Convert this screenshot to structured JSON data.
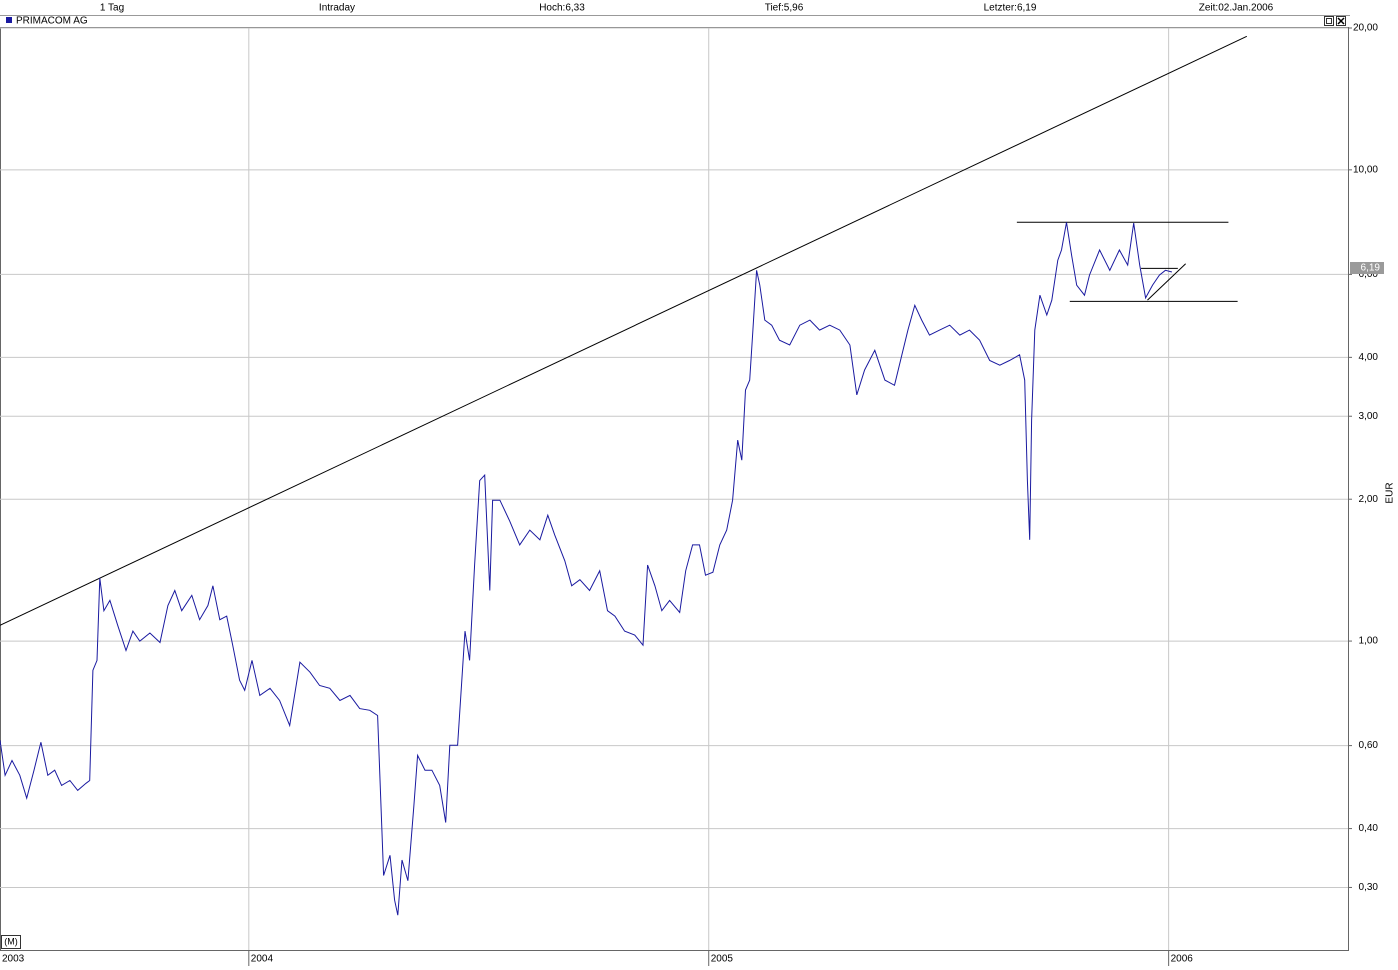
{
  "header": {
    "items": [
      "1 Tag",
      "Intraday",
      "Hoch:6,33",
      "Tief:5,96",
      "Letzter:6,19",
      "Zeit:02.Jan.2006"
    ]
  },
  "chart_data": {
    "type": "line",
    "title": "PRIMACOM AG",
    "ylabel": "EUR",
    "log_scale": true,
    "grid": true,
    "period_label": "(M)",
    "x_start_label": "2003",
    "color": "#1a1aa0",
    "xlim": [
      2003.459,
      2006.39
    ],
    "ylim": [
      0.221,
      20
    ],
    "xticks": [
      2004,
      2005,
      2006
    ],
    "yticks": [
      {
        "value": 0.3,
        "label": "0,30"
      },
      {
        "value": 0.4,
        "label": "0,40"
      },
      {
        "value": 0.6,
        "label": "0,60"
      },
      {
        "value": 1,
        "label": "1,00"
      },
      {
        "value": 2,
        "label": "2,00"
      },
      {
        "value": 3,
        "label": "3,00"
      },
      {
        "value": 4,
        "label": "4,00"
      },
      {
        "value": 6,
        "label": "6,00"
      },
      {
        "value": 10,
        "label": "10,00"
      },
      {
        "value": 20,
        "label": "20,00"
      }
    ],
    "last_value": {
      "value": 6.19,
      "label": "6,19"
    },
    "x": [
      2003.459,
      2003.47,
      2003.485,
      2003.502,
      2003.517,
      2003.533,
      2003.548,
      2003.563,
      2003.578,
      2003.593,
      2003.611,
      2003.628,
      2003.646,
      2003.654,
      2003.661,
      2003.67,
      2003.676,
      2003.685,
      2003.698,
      2003.715,
      2003.733,
      2003.748,
      2003.763,
      2003.785,
      2003.807,
      2003.824,
      2003.839,
      2003.854,
      2003.876,
      2003.893,
      2003.911,
      2003.922,
      2003.937,
      2003.952,
      2003.965,
      2003.98,
      2003.991,
      2004.007,
      2004.024,
      2004.046,
      2004.067,
      2004.089,
      2004.111,
      2004.133,
      2004.154,
      2004.176,
      2004.198,
      2004.22,
      2004.241,
      2004.263,
      2004.28,
      2004.293,
      2004.307,
      2004.317,
      2004.324,
      2004.333,
      2004.346,
      2004.359,
      2004.367,
      2004.383,
      2004.398,
      2004.415,
      2004.428,
      2004.437,
      2004.454,
      2004.47,
      2004.48,
      2004.491,
      2004.502,
      2004.513,
      2004.524,
      2004.53,
      2004.546,
      2004.567,
      2004.589,
      2004.611,
      2004.633,
      2004.65,
      2004.665,
      2004.687,
      2004.702,
      2004.72,
      2004.741,
      2004.763,
      2004.78,
      2004.796,
      2004.817,
      2004.839,
      2004.857,
      2004.867,
      2004.883,
      2004.898,
      2004.915,
      2004.937,
      2004.95,
      2004.965,
      2004.98,
      2004.993,
      2005.009,
      2005.024,
      2005.039,
      2005.052,
      2005.063,
      2005.072,
      2005.08,
      2005.089,
      2005.096,
      2005.104,
      2005.111,
      2005.122,
      2005.137,
      2005.154,
      2005.176,
      2005.198,
      2005.22,
      2005.241,
      2005.263,
      2005.285,
      2005.307,
      2005.322,
      2005.339,
      2005.361,
      2005.383,
      2005.404,
      2005.42,
      2005.433,
      2005.448,
      2005.463,
      2005.48,
      2005.502,
      2005.524,
      2005.546,
      2005.567,
      2005.589,
      2005.611,
      2005.633,
      2005.654,
      2005.676,
      2005.687,
      2005.693,
      2005.698,
      2005.702,
      2005.709,
      2005.72,
      2005.735,
      2005.746,
      2005.759,
      2005.767,
      2005.778,
      2005.789,
      2005.8,
      2005.817,
      2005.828,
      2005.85,
      2005.872,
      2005.893,
      2005.911,
      2005.924,
      2005.937,
      2005.95,
      2005.965,
      2005.98,
      2005.993,
      2006.007
    ],
    "values": [
      0.616,
      0.519,
      0.558,
      0.519,
      0.464,
      0.532,
      0.61,
      0.519,
      0.532,
      0.494,
      0.506,
      0.482,
      0.499,
      0.506,
      0.867,
      0.91,
      1.36,
      1.16,
      1.22,
      1.08,
      0.955,
      1.05,
      1.0,
      1.04,
      0.993,
      1.19,
      1.28,
      1.16,
      1.25,
      1.11,
      1.19,
      1.31,
      1.11,
      1.13,
      0.98,
      0.826,
      0.786,
      0.91,
      0.767,
      0.794,
      0.748,
      0.662,
      0.902,
      0.859,
      0.805,
      0.794,
      0.748,
      0.767,
      0.719,
      0.713,
      0.695,
      0.318,
      0.351,
      0.282,
      0.262,
      0.343,
      0.31,
      0.448,
      0.572,
      0.532,
      0.532,
      0.494,
      0.412,
      0.601,
      0.601,
      1.05,
      0.91,
      1.45,
      2.19,
      2.25,
      1.28,
      1.99,
      1.99,
      1.8,
      1.6,
      1.72,
      1.64,
      1.85,
      1.68,
      1.48,
      1.31,
      1.35,
      1.28,
      1.41,
      1.16,
      1.13,
      1.05,
      1.03,
      0.98,
      1.45,
      1.31,
      1.16,
      1.22,
      1.15,
      1.41,
      1.6,
      1.6,
      1.38,
      1.4,
      1.6,
      1.72,
      1.99,
      2.67,
      2.42,
      3.41,
      3.58,
      4.57,
      6.12,
      5.69,
      4.8,
      4.68,
      4.35,
      4.25,
      4.68,
      4.8,
      4.57,
      4.68,
      4.57,
      4.25,
      3.33,
      3.76,
      4.14,
      3.58,
      3.49,
      4.05,
      4.57,
      5.16,
      4.8,
      4.46,
      4.57,
      4.68,
      4.46,
      4.57,
      4.35,
      3.94,
      3.85,
      3.94,
      4.05,
      3.58,
      2.19,
      1.64,
      2.94,
      4.57,
      5.42,
      4.92,
      5.29,
      6.43,
      6.76,
      7.74,
      6.59,
      5.69,
      5.42,
      5.98,
      6.76,
      6.12,
      6.76,
      6.28,
      7.71,
      6.28,
      5.35,
      5.69,
      5.98,
      6.12,
      6.07
    ],
    "trendlines": [
      {
        "x": [
          2003.459,
          2006.17
        ],
        "y": [
          1.08,
          19.2
        ]
      },
      {
        "x": [
          2005.67,
          2006.13
        ],
        "y": [
          7.74,
          7.74
        ]
      },
      {
        "x": [
          2005.785,
          2006.15
        ],
        "y": [
          5.26,
          5.26
        ]
      },
      {
        "x": [
          2005.94,
          2006.02
        ],
        "y": [
          6.18,
          6.18
        ]
      },
      {
        "x": [
          2005.954,
          2006.037
        ],
        "y": [
          5.29,
          6.32
        ]
      }
    ]
  }
}
